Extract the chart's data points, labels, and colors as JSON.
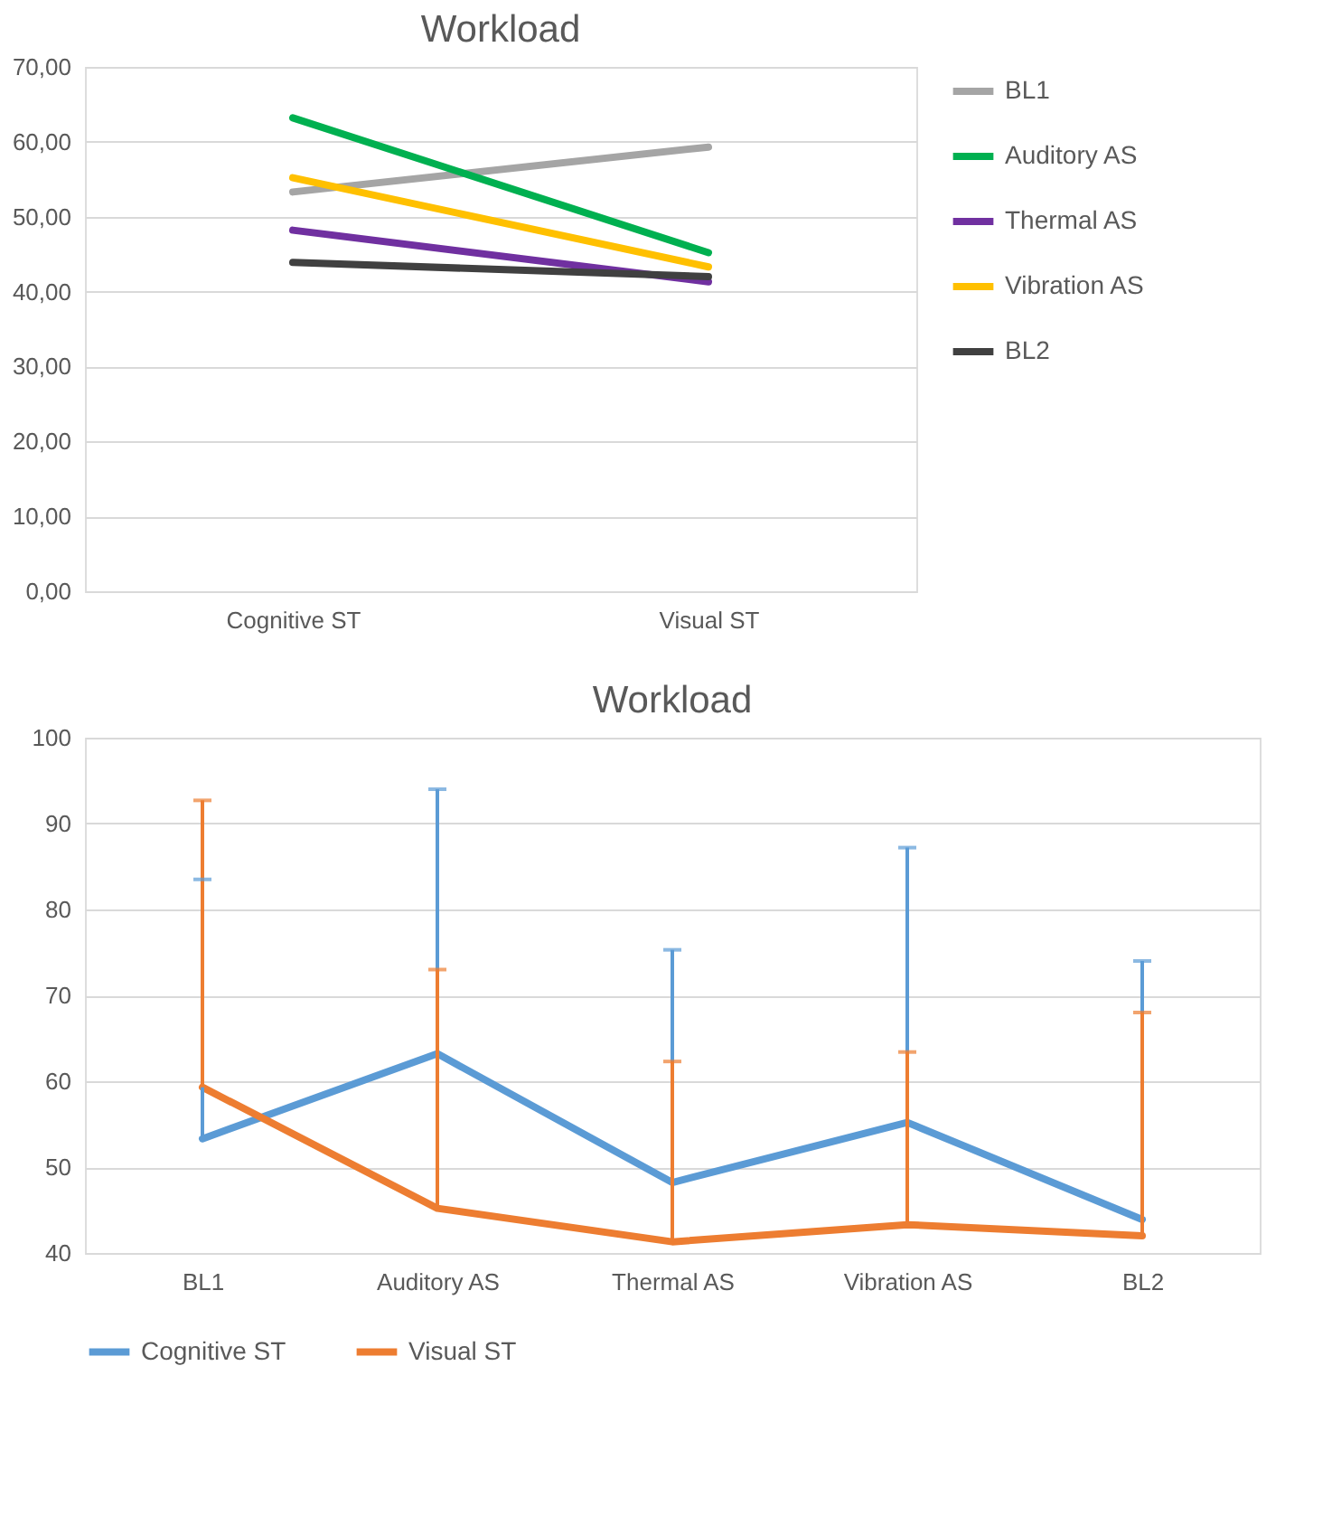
{
  "chart_data": [
    {
      "type": "line",
      "title": "Workload",
      "categories": [
        "Cognitive ST",
        "Visual ST"
      ],
      "ylim": [
        0,
        70
      ],
      "yticks": [
        {
          "value": 0,
          "label": "0,00"
        },
        {
          "value": 10,
          "label": "10,00"
        },
        {
          "value": 20,
          "label": "20,00"
        },
        {
          "value": 30,
          "label": "30,00"
        },
        {
          "value": 40,
          "label": "40,00"
        },
        {
          "value": 50,
          "label": "50,00"
        },
        {
          "value": 60,
          "label": "60,00"
        },
        {
          "value": 70,
          "label": "70,00"
        }
      ],
      "grid": "y",
      "legend": "right",
      "marker": "none",
      "line_style": "solid",
      "series": [
        {
          "name": "BL1",
          "color": "#a5a5a5",
          "values": [
            53.3,
            59.3
          ]
        },
        {
          "name": "Auditory AS",
          "color": "#00b050",
          "values": [
            63.2,
            45.2
          ]
        },
        {
          "name": "Thermal AS",
          "color": "#7030a0",
          "values": [
            48.2,
            41.3
          ]
        },
        {
          "name": "Vibration AS",
          "color": "#ffc000",
          "values": [
            55.2,
            43.3
          ]
        },
        {
          "name": "BL2",
          "color": "#404040",
          "values": [
            43.9,
            42.0
          ]
        }
      ]
    },
    {
      "type": "line",
      "title": "Workload",
      "categories": [
        "BL1",
        "Auditory AS",
        "Thermal AS",
        "Vibration AS",
        "BL2"
      ],
      "ylim": [
        40,
        100
      ],
      "yticks": [
        40,
        50,
        60,
        70,
        80,
        90,
        100
      ],
      "grid": "y",
      "legend": "bottom",
      "marker": "none",
      "line_style": "solid",
      "series": [
        {
          "name": "Cognitive ST",
          "color": "#5b9bd5",
          "values": [
            53.3,
            63.2,
            48.2,
            55.2,
            43.9
          ],
          "errors": [
            [
              53.3,
              83.5
            ],
            [
              63.2,
              94.0
            ],
            [
              48.2,
              75.3
            ],
            [
              55.2,
              87.2
            ],
            [
              43.9,
              74.0
            ]
          ]
        },
        {
          "name": "Visual ST",
          "color": "#ed7d31",
          "values": [
            59.3,
            45.2,
            41.3,
            43.3,
            42.0
          ],
          "errors": [
            [
              59.3,
              92.7
            ],
            [
              45.2,
              73.0
            ],
            [
              41.3,
              62.3
            ],
            [
              43.3,
              63.4
            ],
            [
              42.0,
              68.0
            ]
          ]
        }
      ]
    }
  ]
}
